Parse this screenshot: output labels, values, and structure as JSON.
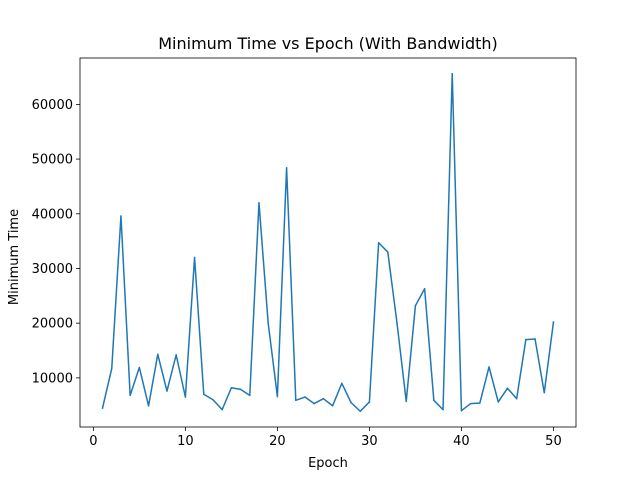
{
  "chart_data": {
    "type": "line",
    "title": "Minimum Time vs Epoch (With Bandwidth)",
    "xlabel": "Epoch",
    "ylabel": "Minimum Time",
    "xlim": [
      -1.45,
      52.45
    ],
    "ylim": [
      1020,
      68480
    ],
    "xticks": [
      0,
      10,
      20,
      30,
      40,
      50
    ],
    "yticks": [
      10000,
      20000,
      30000,
      40000,
      50000,
      60000
    ],
    "ytick_labels": [
      "10000",
      "20000",
      "30000",
      "40000",
      "50000",
      "60000"
    ],
    "grid": false,
    "line_color": "#1f77b4",
    "series": [
      {
        "x": [
          1,
          2,
          3,
          4,
          5,
          6,
          7,
          8,
          9,
          10,
          11,
          12,
          13,
          14,
          15,
          16,
          17,
          18,
          19,
          20,
          21,
          22,
          23,
          24,
          25,
          26,
          27,
          28,
          29,
          30,
          31,
          32,
          33,
          34,
          35,
          36,
          37,
          38,
          39,
          40,
          41,
          42,
          43,
          44,
          45,
          46,
          47,
          48,
          49,
          50
        ],
        "values": [
          4500,
          11700,
          39600,
          6800,
          11900,
          4900,
          14300,
          7600,
          14200,
          6500,
          32000,
          7000,
          6000,
          4200,
          8200,
          7900,
          6800,
          42000,
          20000,
          6600,
          48400,
          5900,
          6500,
          5300,
          6200,
          4900,
          9000,
          5500,
          3900,
          5600,
          34700,
          33000,
          20000,
          5700,
          23200,
          26300,
          5900,
          4200,
          65600,
          4000,
          5300,
          5400,
          12000,
          5600,
          8100,
          6200,
          17000,
          17100,
          7300,
          20200
        ]
      }
    ]
  }
}
